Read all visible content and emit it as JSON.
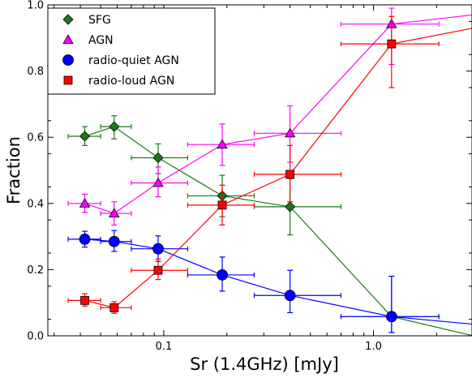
{
  "chart_data": {
    "type": "scatter",
    "xlabel": "Sr (1.4GHz) [mJy]",
    "ylabel": "Fraction",
    "xscale": "log",
    "xlim": [
      0.028,
      2.95
    ],
    "ylim": [
      0.0,
      1.0
    ],
    "x_ticks": [
      0.1,
      1.0
    ],
    "x_tick_labels": [
      "0.1",
      "1.0"
    ],
    "y_ticks": [
      0.0,
      0.2,
      0.4,
      0.6,
      0.8,
      1.0
    ],
    "y_tick_labels": [
      "0.0",
      "0.2",
      "0.4",
      "0.6",
      "0.8",
      "1.0"
    ],
    "grid": false,
    "legend_position": "top-left",
    "series": [
      {
        "name": "SFG",
        "marker": "diamond",
        "color": "#1a7a1a",
        "points": [
          {
            "x": 0.042,
            "y": 0.603,
            "xerr": [
              0.035,
              0.05
            ],
            "yerr": [
              0.575,
              0.632
            ]
          },
          {
            "x": 0.058,
            "y": 0.632,
            "xerr": [
              0.05,
              0.07
            ],
            "yerr": [
              0.595,
              0.665
            ]
          },
          {
            "x": 0.094,
            "y": 0.538,
            "xerr": [
              0.07,
              0.13
            ],
            "yerr": [
              0.49,
              0.58
            ]
          },
          {
            "x": 0.19,
            "y": 0.423,
            "xerr": [
              0.13,
              0.27
            ],
            "yerr": [
              0.36,
              0.485
            ]
          },
          {
            "x": 0.4,
            "y": 0.39,
            "xerr": [
              0.27,
              0.7
            ],
            "yerr": [
              0.305,
              0.475
            ]
          },
          {
            "x": 1.22,
            "y": 0.058,
            "xerr": [
              0.7,
              2.05
            ],
            "yerr": [
              0.01,
              0.18
            ]
          },
          {
            "x": 3.0,
            "y": 0.0,
            "draw_marker": false
          }
        ]
      },
      {
        "name": "AGN",
        "marker": "triangle",
        "color": "#ff00ff",
        "points": [
          {
            "x": 0.042,
            "y": 0.4,
            "xerr": [
              0.035,
              0.05
            ],
            "yerr": [
              0.373,
              0.428
            ]
          },
          {
            "x": 0.058,
            "y": 0.37,
            "xerr": [
              0.05,
              0.07
            ],
            "yerr": [
              0.335,
              0.405
            ]
          },
          {
            "x": 0.094,
            "y": 0.462,
            "xerr": [
              0.07,
              0.13
            ],
            "yerr": [
              0.42,
              0.51
            ]
          },
          {
            "x": 0.19,
            "y": 0.578,
            "xerr": [
              0.13,
              0.27
            ],
            "yerr": [
              0.515,
              0.64
            ]
          },
          {
            "x": 0.4,
            "y": 0.612,
            "xerr": [
              0.27,
              0.7
            ],
            "yerr": [
              0.525,
              0.695
            ]
          },
          {
            "x": 1.22,
            "y": 0.942,
            "xerr": [
              0.7,
              2.05
            ],
            "yerr": [
              0.82,
              0.99
            ]
          },
          {
            "x": 3.0,
            "y": 0.97,
            "draw_marker": false
          }
        ]
      },
      {
        "name": "radio-quiet AGN",
        "marker": "circle",
        "color": "#0000ff",
        "points": [
          {
            "x": 0.042,
            "y": 0.292,
            "xerr": [
              0.035,
              0.05
            ],
            "yerr": [
              0.268,
              0.316
            ]
          },
          {
            "x": 0.058,
            "y": 0.285,
            "xerr": [
              0.05,
              0.07
            ],
            "yerr": [
              0.255,
              0.318
            ]
          },
          {
            "x": 0.094,
            "y": 0.263,
            "xerr": [
              0.07,
              0.13
            ],
            "yerr": [
              0.225,
              0.302
            ]
          },
          {
            "x": 0.19,
            "y": 0.184,
            "xerr": [
              0.13,
              0.27
            ],
            "yerr": [
              0.135,
              0.238
            ]
          },
          {
            "x": 0.4,
            "y": 0.122,
            "xerr": [
              0.27,
              0.7
            ],
            "yerr": [
              0.07,
              0.198
            ]
          },
          {
            "x": 1.22,
            "y": 0.058,
            "xerr": [
              0.7,
              2.05
            ],
            "yerr": [
              0.01,
              0.18
            ]
          },
          {
            "x": 3.0,
            "y": 0.035,
            "draw_marker": false
          }
        ]
      },
      {
        "name": "radio-loud AGN",
        "marker": "square",
        "color": "#ff0000",
        "points": [
          {
            "x": 0.042,
            "y": 0.107,
            "xerr": [
              0.035,
              0.05
            ],
            "yerr": [
              0.09,
              0.127
            ]
          },
          {
            "x": 0.058,
            "y": 0.085,
            "xerr": [
              0.05,
              0.07
            ],
            "yerr": [
              0.068,
              0.103
            ]
          },
          {
            "x": 0.094,
            "y": 0.198,
            "xerr": [
              0.07,
              0.13
            ],
            "yerr": [
              0.17,
              0.232
            ]
          },
          {
            "x": 0.19,
            "y": 0.395,
            "xerr": [
              0.13,
              0.27
            ],
            "yerr": [
              0.335,
              0.455
            ]
          },
          {
            "x": 0.4,
            "y": 0.488,
            "xerr": [
              0.27,
              0.7
            ],
            "yerr": [
              0.405,
              0.575
            ]
          },
          {
            "x": 1.22,
            "y": 0.882,
            "xerr": [
              0.7,
              2.05
            ],
            "yerr": [
              0.75,
              0.965
            ]
          },
          {
            "x": 3.0,
            "y": 0.93,
            "draw_marker": false
          }
        ]
      }
    ]
  }
}
